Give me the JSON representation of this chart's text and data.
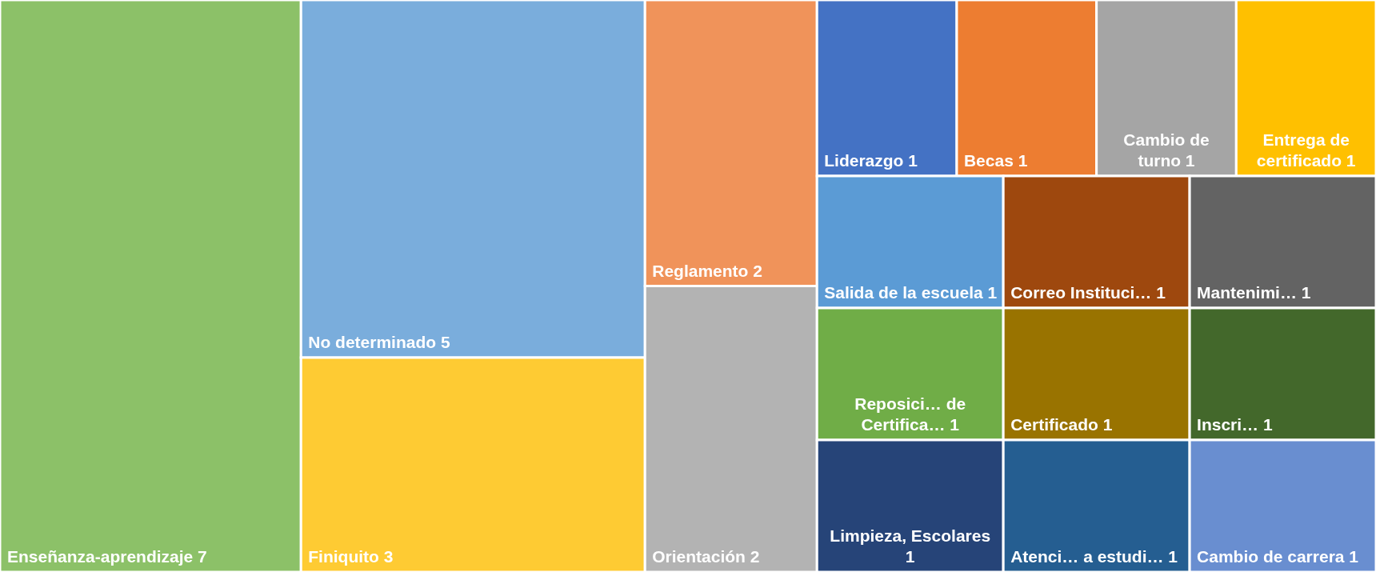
{
  "chart_data": {
    "type": "other",
    "categories": [
      "Enseñanza-aprendizaje",
      "No determinado",
      "Finiquito",
      "Reglamento",
      "Orientación",
      "Liderazgo",
      "Becas",
      "Cambio de turno",
      "Entrega de certificado",
      "Salida de la escuela",
      "Reposici… de Certifica…",
      "Limpieza, Escolares",
      "Correo Instituci…",
      "Mantenimi…",
      "Certificado",
      "Atenci… a estudi…",
      "Inscri…",
      "Cambio de carrera"
    ],
    "data_labels": true,
    "values": [
      7,
      5,
      3,
      2,
      2,
      1,
      1,
      1,
      1,
      1,
      1,
      1,
      1,
      1,
      1,
      1,
      1,
      1
    ],
    "colors": [
      "#8cc168",
      "#7aaddc",
      "#fecb33",
      "#f0935a",
      "#b3b3b3",
      "#4472c4",
      "#ed7d31",
      "#a5a5a5",
      "#ffc000",
      "#5b9bd5",
      "#70ad47",
      "#264478",
      "#9e480e",
      "#636363",
      "#997300",
      "#255e91",
      "#43682b",
      "#698ed0"
    ]
  }
}
